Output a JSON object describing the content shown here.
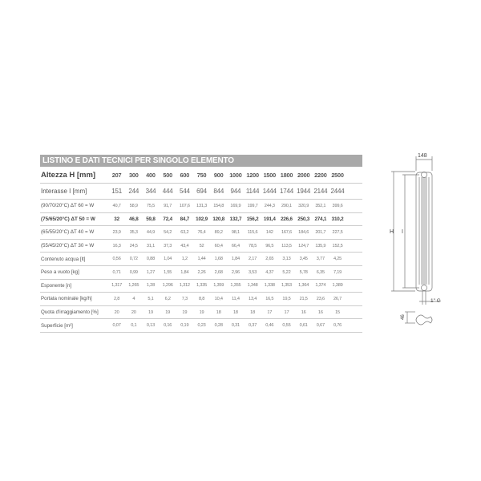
{
  "title": "LISTINO E DATI TECNICI PER SINGOLO ELEMENTO",
  "header": {
    "label": "Altezza H [mm]",
    "values": [
      "207",
      "300",
      "400",
      "500",
      "600",
      "750",
      "900",
      "1000",
      "1200",
      "1500",
      "1800",
      "2000",
      "2200",
      "2500"
    ]
  },
  "rows": [
    {
      "label": "Interasse I [mm]",
      "values": [
        "151",
        "244",
        "344",
        "444",
        "544",
        "694",
        "844",
        "944",
        "1144",
        "1444",
        "1744",
        "1944",
        "2144",
        "2444"
      ]
    },
    {
      "label": "(90/70/20°C) ΔT 60 = W",
      "values": [
        "40,7",
        "58,9",
        "75,5",
        "91,7",
        "107,6",
        "131,3",
        "154,8",
        "169,9",
        "199,7",
        "244,3",
        "290,1",
        "320,9",
        "352,1",
        "399,6"
      ]
    },
    {
      "label": "(75/65/20°C) ΔT 50 = W",
      "bold": true,
      "values": [
        "32",
        "46,8",
        "59,8",
        "72,4",
        "84,7",
        "102,9",
        "120,8",
        "132,7",
        "156,2",
        "191,4",
        "226,6",
        "250,3",
        "274,1",
        "310,2"
      ]
    },
    {
      "label": "(65/55/20°C) ΔT 40 = W",
      "values": [
        "23,9",
        "35,3",
        "44,9",
        "54,2",
        "63,2",
        "76,4",
        "89,2",
        "98,1",
        "115,6",
        "142",
        "167,6",
        "184,6",
        "201,7",
        "227,5"
      ]
    },
    {
      "label": "(55/45/20°C) ΔT 30 = W",
      "values": [
        "16,3",
        "24,5",
        "31,1",
        "37,3",
        "43,4",
        "52",
        "60,4",
        "66,4",
        "78,5",
        "96,5",
        "113,5",
        "124,7",
        "135,9",
        "152,5"
      ]
    },
    {
      "label": "Contenuto acqua [lt]",
      "values": [
        "0,56",
        "0,72",
        "0,88",
        "1,04",
        "1,2",
        "1,44",
        "1,68",
        "1,84",
        "2,17",
        "2,65",
        "3,13",
        "3,45",
        "3,77",
        "4,25"
      ]
    },
    {
      "label": "Peso a vuoto [kg]",
      "values": [
        "0,71",
        "0,99",
        "1,27",
        "1,55",
        "1,84",
        "2,26",
        "2,68",
        "2,96",
        "3,53",
        "4,37",
        "5,22",
        "5,78",
        "6,35",
        "7,19"
      ]
    },
    {
      "label": "Esponente [n]",
      "values": [
        "1,317",
        "1,265",
        "1,28",
        "1,296",
        "1,312",
        "1,335",
        "1,359",
        "1,355",
        "1,348",
        "1,338",
        "1,353",
        "1,364",
        "1,374",
        "1,389"
      ]
    },
    {
      "label": "Portata nominale [kg/h]",
      "values": [
        "2,8",
        "4",
        "5,1",
        "6,2",
        "7,3",
        "8,8",
        "10,4",
        "11,4",
        "13,4",
        "16,5",
        "19,5",
        "21,5",
        "23,6",
        "26,7"
      ]
    },
    {
      "label": "Quota d'irraggiamento [%]",
      "values": [
        "20",
        "20",
        "19",
        "19",
        "19",
        "19",
        "18",
        "18",
        "18",
        "17",
        "17",
        "16",
        "16",
        "15"
      ]
    },
    {
      "label": "Superficie [m²]",
      "values": [
        "0,07",
        "0,1",
        "0,13",
        "0,16",
        "0,19",
        "0,23",
        "0,28",
        "0,31",
        "0,37",
        "0,46",
        "0,55",
        "0,61",
        "0,67",
        "0,76"
      ]
    }
  ],
  "drawing": {
    "width": "148",
    "height": "H",
    "interaxis": "I",
    "connection": "1\" G",
    "depth": "46"
  }
}
